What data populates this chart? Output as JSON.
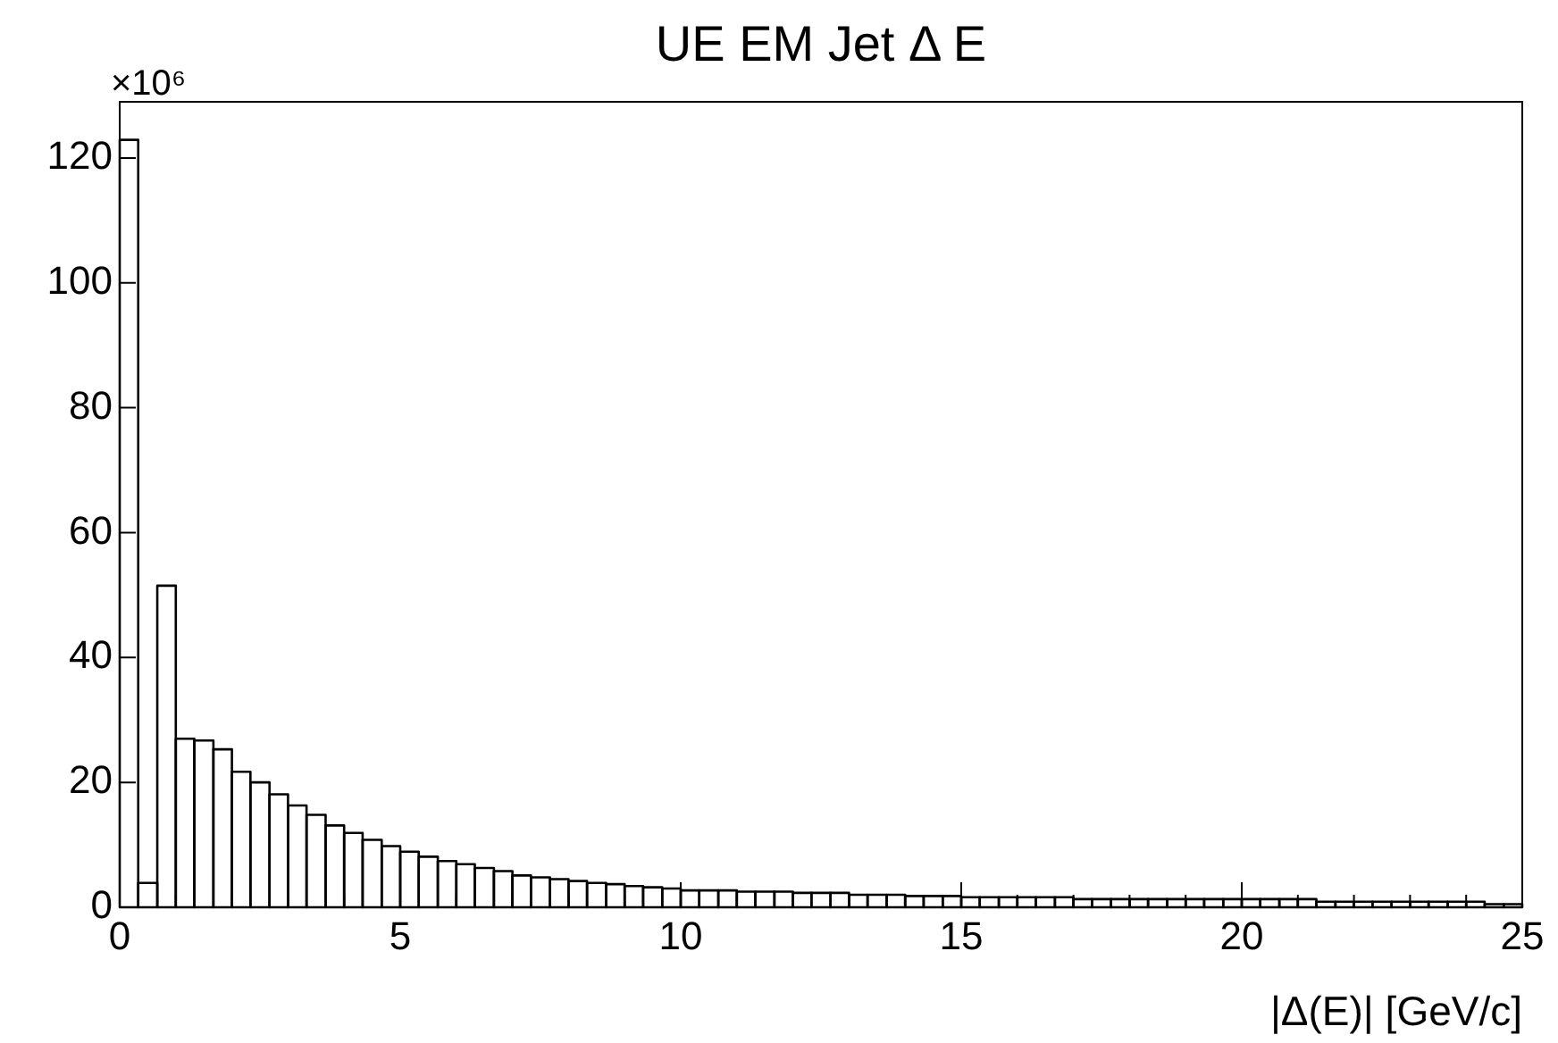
{
  "chart_data": {
    "type": "histogram",
    "title": "UE EM Jet Δ E",
    "xlabel": "|Δ(E)| [GeV/c]",
    "ylabel": "×10⁶",
    "bins": [
      0,
      0.33,
      0.67,
      1,
      1.33,
      1.67,
      2,
      2.33,
      2.67,
      3,
      3.33,
      3.67,
      4,
      4.33,
      4.67,
      5,
      5.33,
      5.67,
      6,
      6.33,
      6.67,
      7,
      7.33,
      7.67,
      8,
      8.33,
      8.67,
      9,
      9.33,
      9.67,
      10,
      10.33,
      10.67,
      11,
      11.33,
      11.67,
      12,
      12.33,
      12.67,
      13,
      13.33,
      13.67,
      14,
      14.33,
      14.67,
      15,
      15.33,
      15.67,
      16,
      16.33,
      16.67,
      17,
      17.33,
      17.67,
      18,
      18.33,
      18.67,
      19,
      19.33,
      19.67,
      20,
      20.33,
      20.67,
      21,
      21.33,
      21.67,
      22,
      22.33,
      22.67,
      23,
      23.33,
      23.67,
      24,
      24.33,
      24.67,
      25
    ],
    "values": [
      122.9,
      3.9,
      51.5,
      27.0,
      26.7,
      25.3,
      21.7,
      20.0,
      18.1,
      16.3,
      14.8,
      13.1,
      11.9,
      10.8,
      9.8,
      8.9,
      8.1,
      7.4,
      6.9,
      6.3,
      5.8,
      5.1,
      4.8,
      4.5,
      4.2,
      3.9,
      3.7,
      3.4,
      3.2,
      3.0,
      2.7,
      2.7,
      2.7,
      2.5,
      2.5,
      2.5,
      2.3,
      2.3,
      2.3,
      2.0,
      2.0,
      2.0,
      1.8,
      1.8,
      1.8,
      1.6,
      1.6,
      1.6,
      1.6,
      1.6,
      1.6,
      1.3,
      1.3,
      1.3,
      1.3,
      1.3,
      1.3,
      1.3,
      1.3,
      1.3,
      1.3,
      1.3,
      1.3,
      1.3,
      0.9,
      0.9,
      0.9,
      0.9,
      0.9,
      0.9,
      0.9,
      0.9,
      0.9,
      0.5,
      0.5
    ],
    "color": "#000000",
    "xlim": [
      0,
      25
    ],
    "xticks": [
      0,
      {
        "value": 1,
        "label": null
      },
      {
        "value": 2,
        "label": null
      },
      {
        "value": 3,
        "label": null
      },
      {
        "value": 4,
        "label": null
      },
      5,
      {
        "value": 6,
        "label": null
      },
      {
        "value": 7,
        "label": null
      },
      {
        "value": 8,
        "label": null
      },
      {
        "value": 9,
        "label": null
      },
      10,
      {
        "value": 11,
        "label": null
      },
      {
        "value": 12,
        "label": null
      },
      {
        "value": 13,
        "label": null
      },
      {
        "value": 14,
        "label": null
      },
      15,
      {
        "value": 16,
        "label": null
      },
      {
        "value": 17,
        "label": null
      },
      {
        "value": 18,
        "label": null
      },
      {
        "value": 19,
        "label": null
      },
      20,
      {
        "value": 21,
        "label": null
      },
      {
        "value": 22,
        "label": null
      },
      {
        "value": 23,
        "label": null
      },
      {
        "value": 24,
        "label": null
      },
      25
    ],
    "ylim": [
      0,
      129
    ],
    "yticks": [
      0,
      20,
      40,
      60,
      80,
      100,
      120
    ],
    "grid": false,
    "legend": false
  }
}
